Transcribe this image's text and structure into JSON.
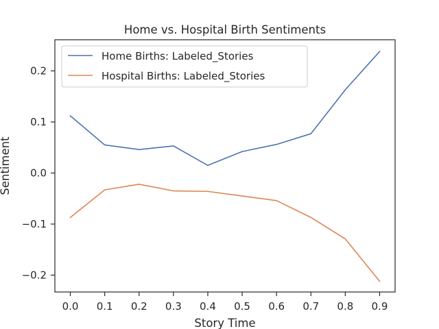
{
  "chart_data": {
    "type": "line",
    "title": "Home vs. Hospital Birth Sentiments",
    "xlabel": "Story Time",
    "ylabel": "Sentiment",
    "x": [
      0.0,
      0.1,
      0.2,
      0.3,
      0.4,
      0.5,
      0.6,
      0.7,
      0.8,
      0.9
    ],
    "xticks": [
      "0.0",
      "0.1",
      "0.2",
      "0.3",
      "0.4",
      "0.5",
      "0.6",
      "0.7",
      "0.8",
      "0.9"
    ],
    "yticks": [
      {
        "value": 0.2,
        "label": "0.2"
      },
      {
        "value": 0.1,
        "label": "0.1"
      },
      {
        "value": 0.0,
        "label": "0.0"
      },
      {
        "value": -0.1,
        "label": "−0.1"
      },
      {
        "value": -0.2,
        "label": "−0.2"
      }
    ],
    "xlim": [
      -0.045,
      0.945
    ],
    "ylim": [
      -0.233,
      0.261
    ],
    "grid": false,
    "legend_position": "top-left",
    "series": [
      {
        "name": "Home Births: Labeled_Stories",
        "color": "#4c72b0",
        "values": [
          0.112,
          0.055,
          0.046,
          0.053,
          0.015,
          0.042,
          0.056,
          0.077,
          0.163,
          0.238
        ]
      },
      {
        "name": "Hospital Births: Labeled_Stories",
        "color": "#dd8452",
        "values": [
          -0.087,
          -0.033,
          -0.022,
          -0.035,
          -0.036,
          -0.045,
          -0.054,
          -0.087,
          -0.129,
          -0.212
        ]
      }
    ]
  }
}
